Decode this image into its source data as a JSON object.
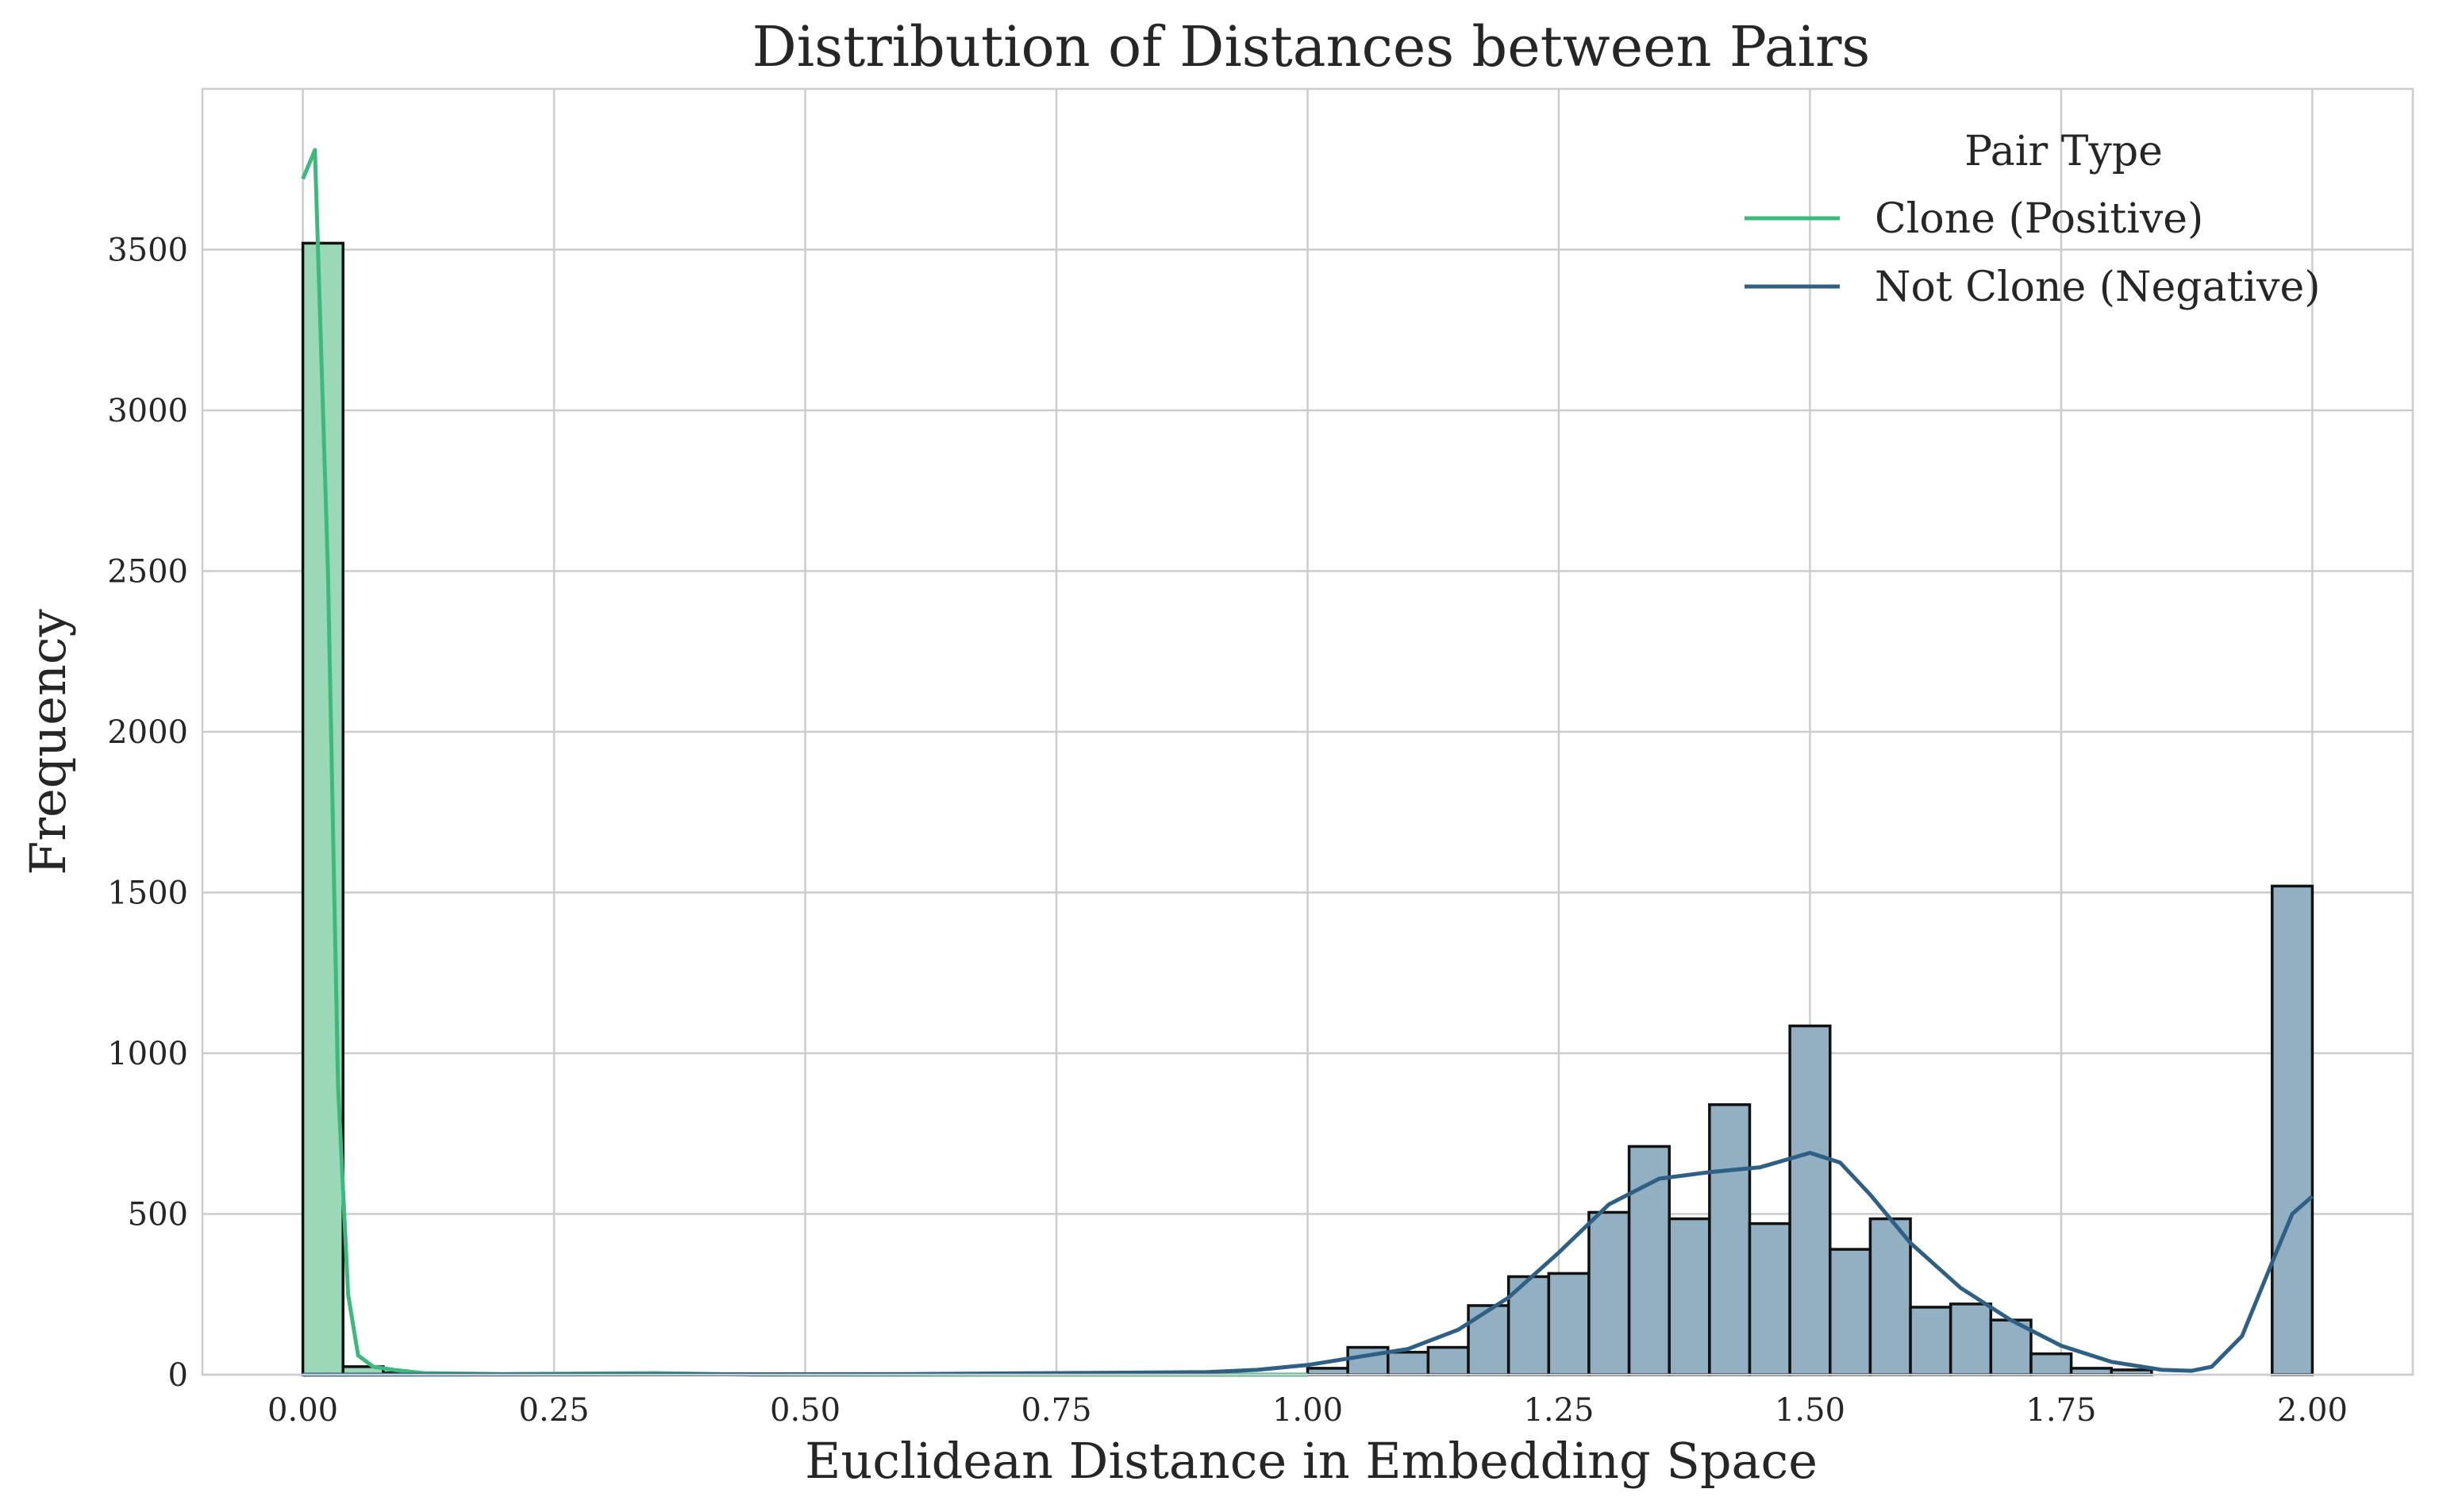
{
  "chart_data": {
    "type": "bar",
    "title": "Distribution of Distances between Pairs",
    "xlabel": "Euclidean Distance in Embedding Space",
    "ylabel": "Frequency",
    "xlim": [
      -0.1,
      2.1
    ],
    "ylim": [
      0,
      4000
    ],
    "xticks": [
      0.0,
      0.25,
      0.5,
      0.75,
      1.0,
      1.25,
      1.5,
      1.75,
      2.0
    ],
    "xtick_labels": [
      "0.00",
      "0.25",
      "0.50",
      "0.75",
      "1.00",
      "1.25",
      "1.50",
      "1.75",
      "2.00"
    ],
    "yticks": [
      0,
      500,
      1000,
      1500,
      2000,
      2500,
      3000,
      3500
    ],
    "ytick_labels": [
      "0",
      "500",
      "1000",
      "1500",
      "2000",
      "2500",
      "3000",
      "3500"
    ],
    "grid": true,
    "legend": {
      "title": "Pair Type",
      "placement": "top-right",
      "entries": [
        "Clone (Positive)",
        "Not Clone (Negative)"
      ]
    },
    "bin_width": 0.04,
    "series": [
      {
        "name": "Clone (Positive)",
        "color": "#3dba7b",
        "fill": "#9bd8b8",
        "bins": [
          {
            "x0": 0.0,
            "x1": 0.04,
            "count": 3520
          },
          {
            "x0": 0.04,
            "x1": 0.08,
            "count": 25
          },
          {
            "x0": 0.08,
            "x1": 0.12,
            "count": 6
          }
        ],
        "kde": [
          [
            0.0,
            3720
          ],
          [
            0.012,
            3810
          ],
          [
            0.025,
            2500
          ],
          [
            0.035,
            900
          ],
          [
            0.045,
            250
          ],
          [
            0.055,
            60
          ],
          [
            0.07,
            25
          ],
          [
            0.09,
            15
          ],
          [
            0.12,
            5
          ],
          [
            0.2,
            2
          ],
          [
            0.35,
            5
          ],
          [
            0.45,
            0
          ],
          [
            1.0,
            0
          ]
        ]
      },
      {
        "name": "Not Clone (Negative)",
        "color": "#2e6086",
        "fill": "#93afc2",
        "bins": [
          {
            "x0": 1.0,
            "x1": 1.04,
            "count": 20
          },
          {
            "x0": 1.04,
            "x1": 1.08,
            "count": 85
          },
          {
            "x0": 1.08,
            "x1": 1.12,
            "count": 70
          },
          {
            "x0": 1.12,
            "x1": 1.16,
            "count": 85
          },
          {
            "x0": 1.16,
            "x1": 1.2,
            "count": 215
          },
          {
            "x0": 1.2,
            "x1": 1.24,
            "count": 305
          },
          {
            "x0": 1.24,
            "x1": 1.28,
            "count": 315
          },
          {
            "x0": 1.28,
            "x1": 1.32,
            "count": 505
          },
          {
            "x0": 1.32,
            "x1": 1.36,
            "count": 710
          },
          {
            "x0": 1.36,
            "x1": 1.4,
            "count": 485
          },
          {
            "x0": 1.4,
            "x1": 1.44,
            "count": 840
          },
          {
            "x0": 1.44,
            "x1": 1.48,
            "count": 470
          },
          {
            "x0": 1.48,
            "x1": 1.52,
            "count": 1085
          },
          {
            "x0": 1.52,
            "x1": 1.56,
            "count": 390
          },
          {
            "x0": 1.56,
            "x1": 1.6,
            "count": 485
          },
          {
            "x0": 1.6,
            "x1": 1.64,
            "count": 210
          },
          {
            "x0": 1.64,
            "x1": 1.68,
            "count": 220
          },
          {
            "x0": 1.68,
            "x1": 1.72,
            "count": 170
          },
          {
            "x0": 1.72,
            "x1": 1.76,
            "count": 65
          },
          {
            "x0": 1.76,
            "x1": 1.8,
            "count": 20
          },
          {
            "x0": 1.8,
            "x1": 1.84,
            "count": 15
          },
          {
            "x0": 1.96,
            "x1": 2.0,
            "count": 1520
          }
        ],
        "kde": [
          [
            0.0,
            0
          ],
          [
            0.6,
            2
          ],
          [
            0.9,
            8
          ],
          [
            0.95,
            15
          ],
          [
            1.0,
            30
          ],
          [
            1.05,
            55
          ],
          [
            1.1,
            80
          ],
          [
            1.15,
            140
          ],
          [
            1.2,
            240
          ],
          [
            1.25,
            380
          ],
          [
            1.3,
            530
          ],
          [
            1.35,
            610
          ],
          [
            1.4,
            630
          ],
          [
            1.45,
            645
          ],
          [
            1.5,
            690
          ],
          [
            1.53,
            660
          ],
          [
            1.56,
            560
          ],
          [
            1.6,
            410
          ],
          [
            1.65,
            270
          ],
          [
            1.7,
            170
          ],
          [
            1.75,
            90
          ],
          [
            1.8,
            40
          ],
          [
            1.85,
            15
          ],
          [
            1.88,
            12
          ],
          [
            1.9,
            25
          ],
          [
            1.93,
            120
          ],
          [
            1.96,
            350
          ],
          [
            1.98,
            500
          ],
          [
            2.0,
            555
          ]
        ]
      }
    ]
  }
}
